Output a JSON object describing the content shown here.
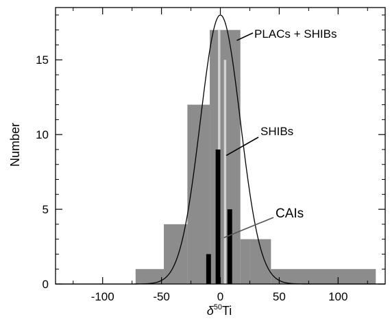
{
  "chart_data": {
    "type": "bar",
    "title": "",
    "xlabel": "δ50Ti",
    "xlabel_base": "δ",
    "xlabel_sup": "50",
    "xlabel_rest": "Ti",
    "ylabel": "Number",
    "xlim": [
      -140,
      140
    ],
    "ylim": [
      0,
      18.5
    ],
    "xticks": [
      -100,
      -50,
      0,
      50,
      100
    ],
    "xtick_labels": [
      "-100",
      "-50",
      "0",
      "50",
      "100"
    ],
    "yticks": [
      0,
      5,
      10,
      15
    ],
    "ytick_labels": [
      "0",
      "5",
      "10",
      "15"
    ],
    "grid": false,
    "series": [
      {
        "name": "PLACs + SHIBs",
        "color": "#8c8c8c",
        "bins": [
          {
            "x0": -72,
            "x1": -48,
            "value": 1
          },
          {
            "x0": -48,
            "x1": -28,
            "value": 4
          },
          {
            "x0": -28,
            "x1": -9,
            "value": 12
          },
          {
            "x0": -9,
            "x1": 17,
            "value": 17
          },
          {
            "x0": 17,
            "x1": 25,
            "value": 3
          },
          {
            "x0": 25,
            "x1": 43,
            "value": 3
          },
          {
            "x0": 43,
            "x1": 132,
            "value": 1
          }
        ]
      },
      {
        "name": "SHIBs",
        "color": "#d2d2d2",
        "bins": [
          {
            "x0": -2,
            "x1": 0,
            "value": 17
          },
          {
            "x0": 3,
            "x1": 5,
            "value": 15
          }
        ]
      },
      {
        "name": "CAIs",
        "color": "#000000",
        "bins": [
          {
            "x0": -12,
            "x1": -8,
            "value": 2
          },
          {
            "x0": -4,
            "x1": 0,
            "value": 9
          },
          {
            "x0": 6,
            "x1": 10,
            "value": 5
          }
        ]
      }
    ],
    "gaussian": {
      "mean": 0,
      "sigma": 17,
      "peak": 18
    },
    "annotations": [
      {
        "text": "PLACs + SHIBs",
        "from_x": 14,
        "from_y": 16.3
      },
      {
        "text": "SHIBs",
        "from_x": 5,
        "from_y": 8.6
      },
      {
        "text": "CAIs",
        "from_x": 3,
        "from_y": 3.1
      }
    ]
  }
}
